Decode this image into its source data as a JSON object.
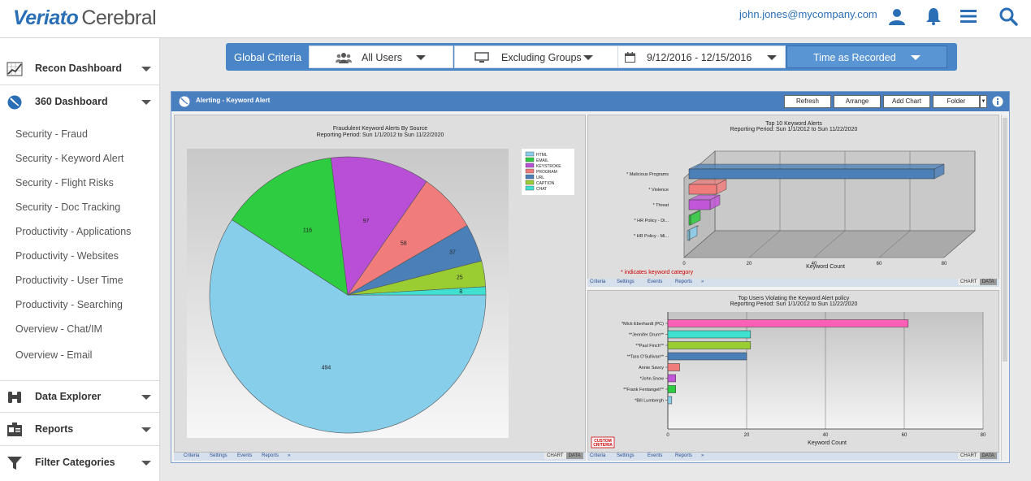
{
  "header": {
    "brand": "Veriato",
    "product": "Cerebral",
    "user_email": "john.jones@mycompany.com",
    "icons": [
      "user-icon",
      "bell-icon",
      "menu-icon",
      "search-icon"
    ]
  },
  "sidebar": {
    "sections": [
      {
        "label": "Recon Dashboard",
        "icon": "chart-icon"
      },
      {
        "label": "360 Dashboard",
        "icon": "dashboard-icon"
      },
      {
        "label": "Data Explorer",
        "icon": "binoculars-icon"
      },
      {
        "label": "Reports",
        "icon": "reports-icon"
      },
      {
        "label": "Filter Categories",
        "icon": "filter-icon"
      }
    ],
    "items": [
      "Security - Fraud",
      "Security - Keyword Alert",
      "Security - Flight Risks",
      "Security - Doc Tracking",
      "Productivity - Applications",
      "Productivity - Websites",
      "Productivity - User Time",
      "Productivity - Searching",
      "Overview - Chat/IM",
      "Overview - Email"
    ]
  },
  "criteria": {
    "label": "Global Criteria",
    "users": "All Users",
    "groups": "Excluding Groups",
    "date_range": "9/12/2016 - 12/15/2016",
    "time": "Time as Recorded"
  },
  "panel": {
    "title": "Alerting - Keyword Alert",
    "buttons": [
      "Refresh",
      "Arrange",
      "Add Chart",
      "Folder"
    ],
    "footer_links": [
      "Criteria",
      "Settings",
      "Events",
      "Reports",
      "»"
    ],
    "tab_chart": "CHART",
    "tab_data": "DATA",
    "custom_criteria": "CUSTOM CRITERIA"
  },
  "chart_data": [
    {
      "type": "pie",
      "title": "Fraudulent Keyword Alerts By Source",
      "subtitle": "Reporting Period: Sun 1/1/2012 to Sun 11/22/2020",
      "legend_position": "top-right",
      "slices": [
        {
          "name": "HTML",
          "value": 494,
          "color": "#87ceeb"
        },
        {
          "name": "EMAIL",
          "value": 116,
          "color": "#2ecc40"
        },
        {
          "name": "KEYSTROKE",
          "value": 97,
          "color": "#b84fd6"
        },
        {
          "name": "PROGRAM",
          "value": 58,
          "color": "#f07c7c"
        },
        {
          "name": "URL",
          "value": 37,
          "color": "#4a7fb8"
        },
        {
          "name": "CAPTION",
          "value": 25,
          "color": "#9acd32"
        },
        {
          "name": "CHAT",
          "value": 8,
          "color": "#40e0d0"
        }
      ]
    },
    {
      "type": "bar",
      "orientation": "horizontal",
      "title": "Top 10 Keyword Alerts",
      "subtitle": "Reporting Period: Sun 1/1/2012 to Sun 11/22/2020",
      "xlabel": "Keyword Count",
      "xlim": [
        0,
        80
      ],
      "xticks": [
        0,
        20,
        40,
        60,
        80
      ],
      "note": "* indicates keyword category",
      "categories": [
        "* Malicious Programs",
        "* Violence",
        "* Threat",
        "* HR Policy - Di...",
        "* HR Policy - Mi..."
      ],
      "values": [
        77,
        10,
        8,
        2,
        1
      ],
      "colors": [
        "#4a7fb8",
        "#f07c7c",
        "#c157d8",
        "#2ecc40",
        "#87ceeb"
      ]
    },
    {
      "type": "bar",
      "orientation": "horizontal",
      "title": "Top Users Violating the Keyword Alert policy",
      "subtitle": "Reporting Period: Sun 1/1/2012 to Sun 11/22/2020",
      "xlabel": "Keyword Count",
      "xlim": [
        0,
        80
      ],
      "xticks": [
        0,
        20,
        40,
        60,
        80
      ],
      "categories": [
        "*Mick Eberhardt (PC)",
        "**Jennifer Drum**",
        "**Paul Finch**",
        "**Tara O'Sullivan**",
        "Annie Savoy",
        "*John.Snow",
        "**Frank Fentangeli**",
        "*Bill Lumbergh"
      ],
      "values": [
        61,
        21,
        21,
        20,
        3,
        2,
        2,
        1
      ],
      "colors": [
        "#ff5fb4",
        "#40e0d0",
        "#9acd32",
        "#4a7fb8",
        "#f07c7c",
        "#c157d8",
        "#2ecc40",
        "#87ceeb"
      ]
    }
  ]
}
